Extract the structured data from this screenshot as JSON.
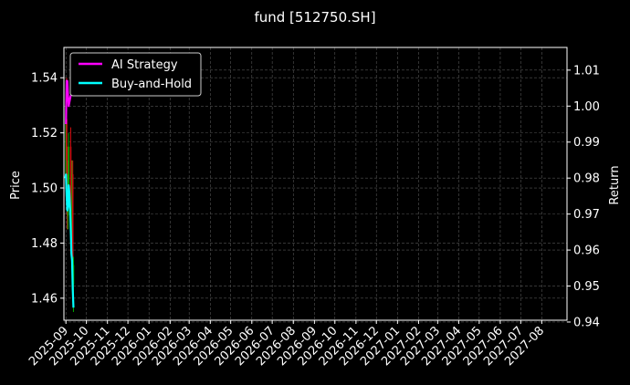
{
  "chart_data": {
    "type": "line",
    "title": "fund [512750.SH]",
    "ylabel": "Price",
    "y2label": "Return",
    "background": "#000000",
    "grid": true,
    "legend_position": "top-left",
    "ylim": [
      1.452,
      1.551
    ],
    "y2lim": [
      0.9405,
      1.0163
    ],
    "yticks": [
      "1.46",
      "1.48",
      "1.50",
      "1.52",
      "1.54"
    ],
    "yticks_values": [
      1.46,
      1.48,
      1.5,
      1.52,
      1.54
    ],
    "y2ticks": [
      "0.94",
      "0.95",
      "0.96",
      "0.97",
      "0.98",
      "0.99",
      "1.00",
      "1.01"
    ],
    "y2ticks_values": [
      0.94,
      0.95,
      0.96,
      0.97,
      0.98,
      0.99,
      1.0,
      1.01
    ],
    "xlim": [
      "2025-08-29",
      "2027-09-07"
    ],
    "xticks": [
      "2025-09",
      "2025-10",
      "2025-11",
      "2025-12",
      "2026-01",
      "2026-02",
      "2026-03",
      "2026-04",
      "2026-05",
      "2026-06",
      "2026-07",
      "2026-08",
      "2026-09",
      "2026-10",
      "2026-11",
      "2026-12",
      "2027-01",
      "2027-02",
      "2027-03",
      "2027-04",
      "2027-05",
      "2027-06",
      "2027-07",
      "2027-08"
    ],
    "xticks_dates": [
      "2025-09-01",
      "2025-10-01",
      "2025-11-01",
      "2025-12-01",
      "2026-01-01",
      "2026-02-01",
      "2026-03-01",
      "2026-04-01",
      "2026-05-01",
      "2026-06-01",
      "2026-07-01",
      "2026-08-01",
      "2026-09-01",
      "2026-10-01",
      "2026-11-01",
      "2026-12-01",
      "2027-01-01",
      "2027-02-01",
      "2027-03-01",
      "2027-04-01",
      "2027-05-01",
      "2027-06-01",
      "2027-07-01",
      "2027-08-01"
    ],
    "candles": [
      {
        "date": "2025-09-01",
        "open": 1.505,
        "high": 1.535,
        "low": 1.5,
        "close": 1.53
      },
      {
        "date": "2025-09-02",
        "open": 1.525,
        "high": 1.54,
        "low": 1.505,
        "close": 1.51
      },
      {
        "date": "2025-09-03",
        "open": 1.51,
        "high": 1.515,
        "low": 1.485,
        "close": 1.49
      },
      {
        "date": "2025-09-04",
        "open": 1.49,
        "high": 1.505,
        "low": 1.485,
        "close": 1.5
      },
      {
        "date": "2025-09-05",
        "open": 1.5,
        "high": 1.52,
        "low": 1.495,
        "close": 1.515
      },
      {
        "date": "2025-09-08",
        "open": 1.515,
        "high": 1.522,
        "low": 1.49,
        "close": 1.495
      },
      {
        "date": "2025-09-09",
        "open": 1.495,
        "high": 1.51,
        "low": 1.475,
        "close": 1.48
      },
      {
        "date": "2025-09-10",
        "open": 1.48,
        "high": 1.51,
        "low": 1.47,
        "close": 1.505
      },
      {
        "date": "2025-09-11",
        "open": 1.505,
        "high": 1.51,
        "low": 1.465,
        "close": 1.47
      },
      {
        "date": "2025-09-12",
        "open": 1.465,
        "high": 1.475,
        "low": 1.455,
        "close": 1.472
      }
    ],
    "series": [
      {
        "name": "AI Strategy",
        "color": "#ff00ff",
        "axis": "right",
        "x": [
          "2025-09-01",
          "2025-09-02",
          "2025-09-03",
          "2025-09-04",
          "2025-09-05",
          "2025-09-06",
          "2025-09-07",
          "2025-09-08"
        ],
        "values": [
          0.995,
          1.007,
          1.007,
          1.003,
          1.0,
          1.001,
          1.002,
          1.003
        ]
      },
      {
        "name": "Buy-and-Hold",
        "color": "#00ffff",
        "axis": "right",
        "x": [
          "2025-08-31",
          "2025-09-01",
          "2025-09-02",
          "2025-09-03",
          "2025-09-04",
          "2025-09-05",
          "2025-09-06",
          "2025-09-07",
          "2025-09-08",
          "2025-09-09",
          "2025-09-10",
          "2025-09-11",
          "2025-09-12"
        ],
        "values": [
          0.98,
          0.981,
          0.975,
          0.971,
          0.972,
          0.978,
          0.976,
          0.972,
          0.966,
          0.959,
          0.957,
          0.949,
          0.944
        ]
      }
    ]
  }
}
